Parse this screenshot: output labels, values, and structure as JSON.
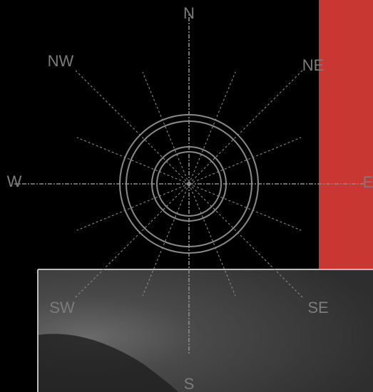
{
  "compass": {
    "directions": [
      "N",
      "NE",
      "E",
      "SE",
      "S",
      "SW",
      "W",
      "NW"
    ]
  }
}
